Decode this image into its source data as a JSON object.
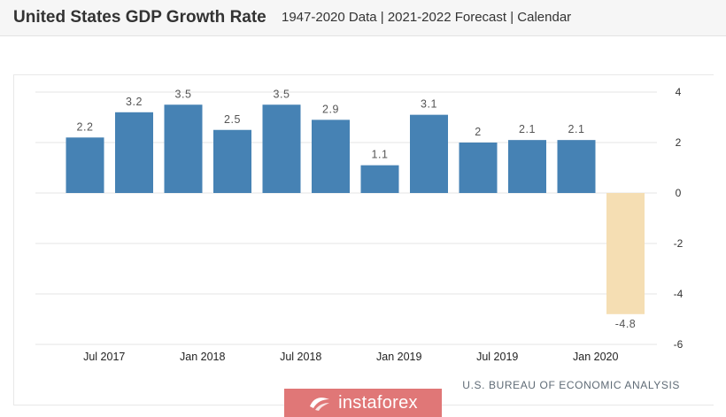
{
  "header": {
    "title": "United States GDP Growth Rate",
    "subtitle": "1947-2020 Data | 2021-2022 Forecast | Calendar"
  },
  "source": "U.S. BUREAU OF ECONOMIC ANALYSIS",
  "watermark": {
    "text": "instaforex"
  },
  "colors": {
    "positive": "#4682b4",
    "negative": "#f5deb3",
    "grid": "#e6e6e6",
    "label": "#555555"
  },
  "chart_data": {
    "type": "bar",
    "title": "United States GDP Growth Rate",
    "categories": [
      "2017 Q2",
      "2017 Q3",
      "2017 Q4",
      "2018 Q1",
      "2018 Q2",
      "2018 Q3",
      "2018 Q4",
      "2019 Q1",
      "2019 Q2",
      "2019 Q3",
      "2019 Q4",
      "2020 Q1"
    ],
    "values": [
      2.2,
      3.2,
      3.5,
      2.5,
      3.5,
      2.9,
      1.1,
      3.1,
      2,
      2.1,
      2.1,
      -4.8
    ],
    "value_labels": [
      "2.2",
      "3.2",
      "3.5",
      "2.5",
      "3.5",
      "2.9",
      "1.1",
      "3.1",
      "2",
      "2.1",
      "2.1",
      "-4.8"
    ],
    "x_tick_labels": [
      "Jul 2017",
      "Jan 2018",
      "Jul 2018",
      "Jan 2019",
      "Jul 2019",
      "Jan 2020"
    ],
    "y_ticks": [
      4,
      2,
      0,
      -2,
      -4,
      -6
    ],
    "y_tick_labels": [
      "4",
      "2",
      "0",
      "-2",
      "-4",
      "-6"
    ],
    "ylim": [
      -6,
      4
    ],
    "xlabel": "",
    "ylabel": "",
    "grid": true,
    "y_axis_position": "right"
  }
}
